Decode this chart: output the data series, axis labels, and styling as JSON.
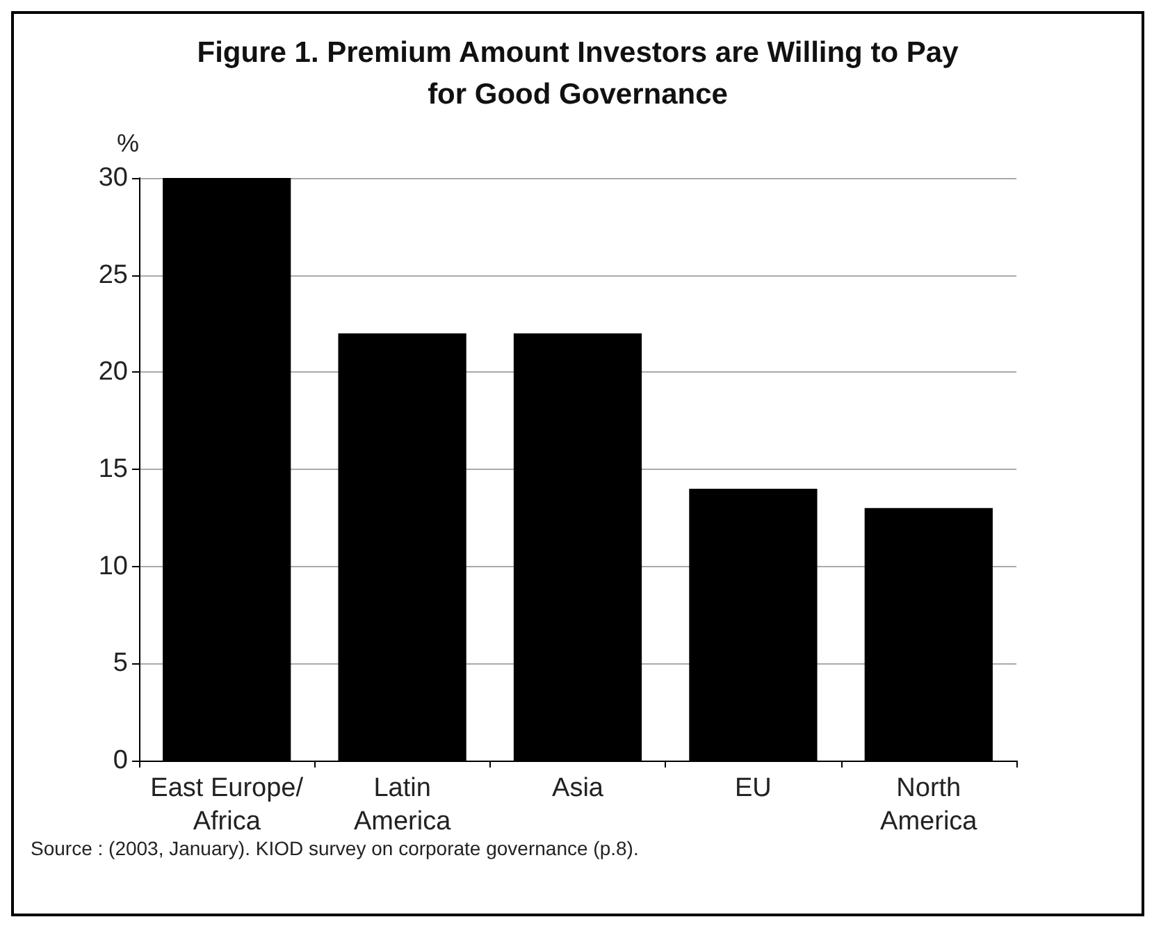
{
  "chart_data": {
    "type": "bar",
    "title": "Figure 1. Premium Amount Investors are Willing to Pay\nfor Good Governance",
    "ylabel": "%",
    "categories": [
      "East Europe/\nAfrica",
      "Latin\nAmerica",
      "Asia",
      "EU",
      "North\nAmerica"
    ],
    "values": [
      30,
      22,
      22,
      14,
      13
    ],
    "color": "#000000",
    "ylim": [
      0,
      30
    ],
    "yticks": [
      0,
      5,
      10,
      15,
      20,
      25,
      30
    ],
    "grid": "y",
    "annotations": [
      "Source : (2003, January). KIOD survey on corporate governance (p.8)."
    ]
  }
}
